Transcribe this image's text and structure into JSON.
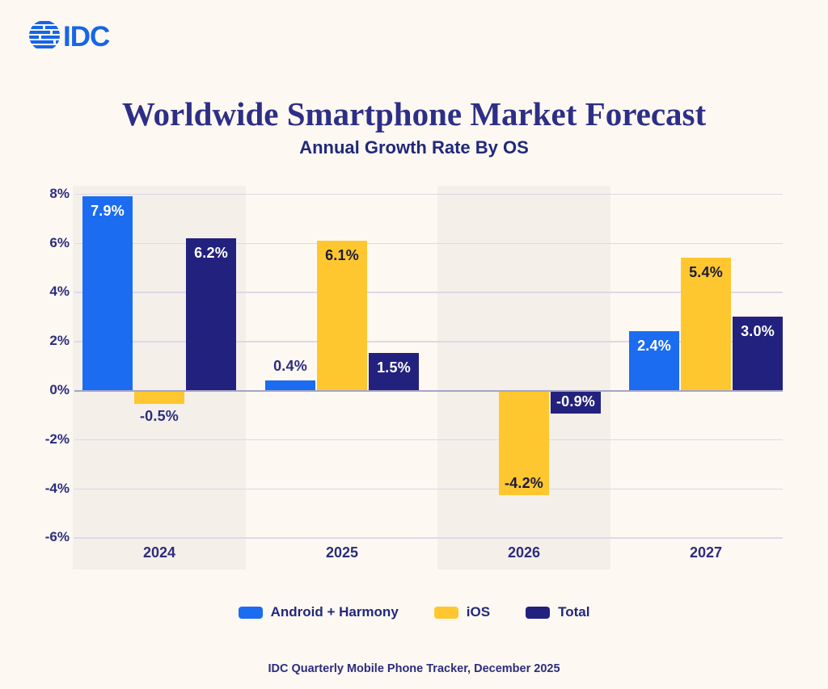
{
  "logo": {
    "text": "IDC",
    "color": "#1765e8"
  },
  "chart_data": {
    "type": "bar",
    "title": "Worldwide Smartphone Market Forecast",
    "subtitle": "Annual Growth Rate By OS",
    "categories": [
      "2024",
      "2025",
      "2026",
      "2027"
    ],
    "series": [
      {
        "name": "Android + Harmony",
        "color": "#1b6cf0",
        "values": [
          7.9,
          0.4,
          null,
          2.4
        ],
        "labels": [
          "7.9%",
          "0.4%",
          null,
          "2.4%"
        ],
        "label_pos": [
          "in",
          "out",
          null,
          "in"
        ],
        "label_inside_color": "#ffffff"
      },
      {
        "name": "iOS",
        "color": "#ffc72f",
        "values": [
          -0.5,
          6.1,
          -4.2,
          5.4
        ],
        "labels": [
          "-0.5%",
          "6.1%",
          "-4.2%",
          "5.4%"
        ],
        "label_pos": [
          "out",
          "in",
          "in",
          "in"
        ],
        "label_inside_color": "#1a1a38"
      },
      {
        "name": "Total",
        "color": "#23217e",
        "values": [
          6.2,
          1.5,
          -0.9,
          3.0
        ],
        "labels": [
          "6.2%",
          "1.5%",
          "-0.9%",
          "3.0%"
        ],
        "label_pos": [
          "in",
          "in",
          "in",
          "in"
        ],
        "label_inside_color": "#ffffff"
      }
    ],
    "y_ticks": [
      {
        "label": "8%",
        "value": 8
      },
      {
        "label": "6%",
        "value": 6
      },
      {
        "label": "4%",
        "value": 4
      },
      {
        "label": "2%",
        "value": 2
      },
      {
        "label": "0%",
        "value": 0
      },
      {
        "label": "-2%",
        "value": -2
      },
      {
        "label": "-4%",
        "value": -4
      },
      {
        "label": "-6%",
        "value": -6
      }
    ],
    "ylim": [
      -7.3,
      8.3
    ],
    "xlabel": "",
    "ylabel": "",
    "grid": true,
    "legend_position": "bottom",
    "shaded_category_columns": [
      0,
      2
    ],
    "colors": {
      "page_bg": "#fdf8f1",
      "band_bg": "#f4efe9",
      "grid": "#dcd9ea",
      "zero_line": "#a6a3c8",
      "axis_text": "#2b2d7e",
      "title_text": "#2d2f87"
    }
  },
  "footer": {
    "source": "IDC Quarterly Mobile Phone Tracker, December 2025"
  }
}
